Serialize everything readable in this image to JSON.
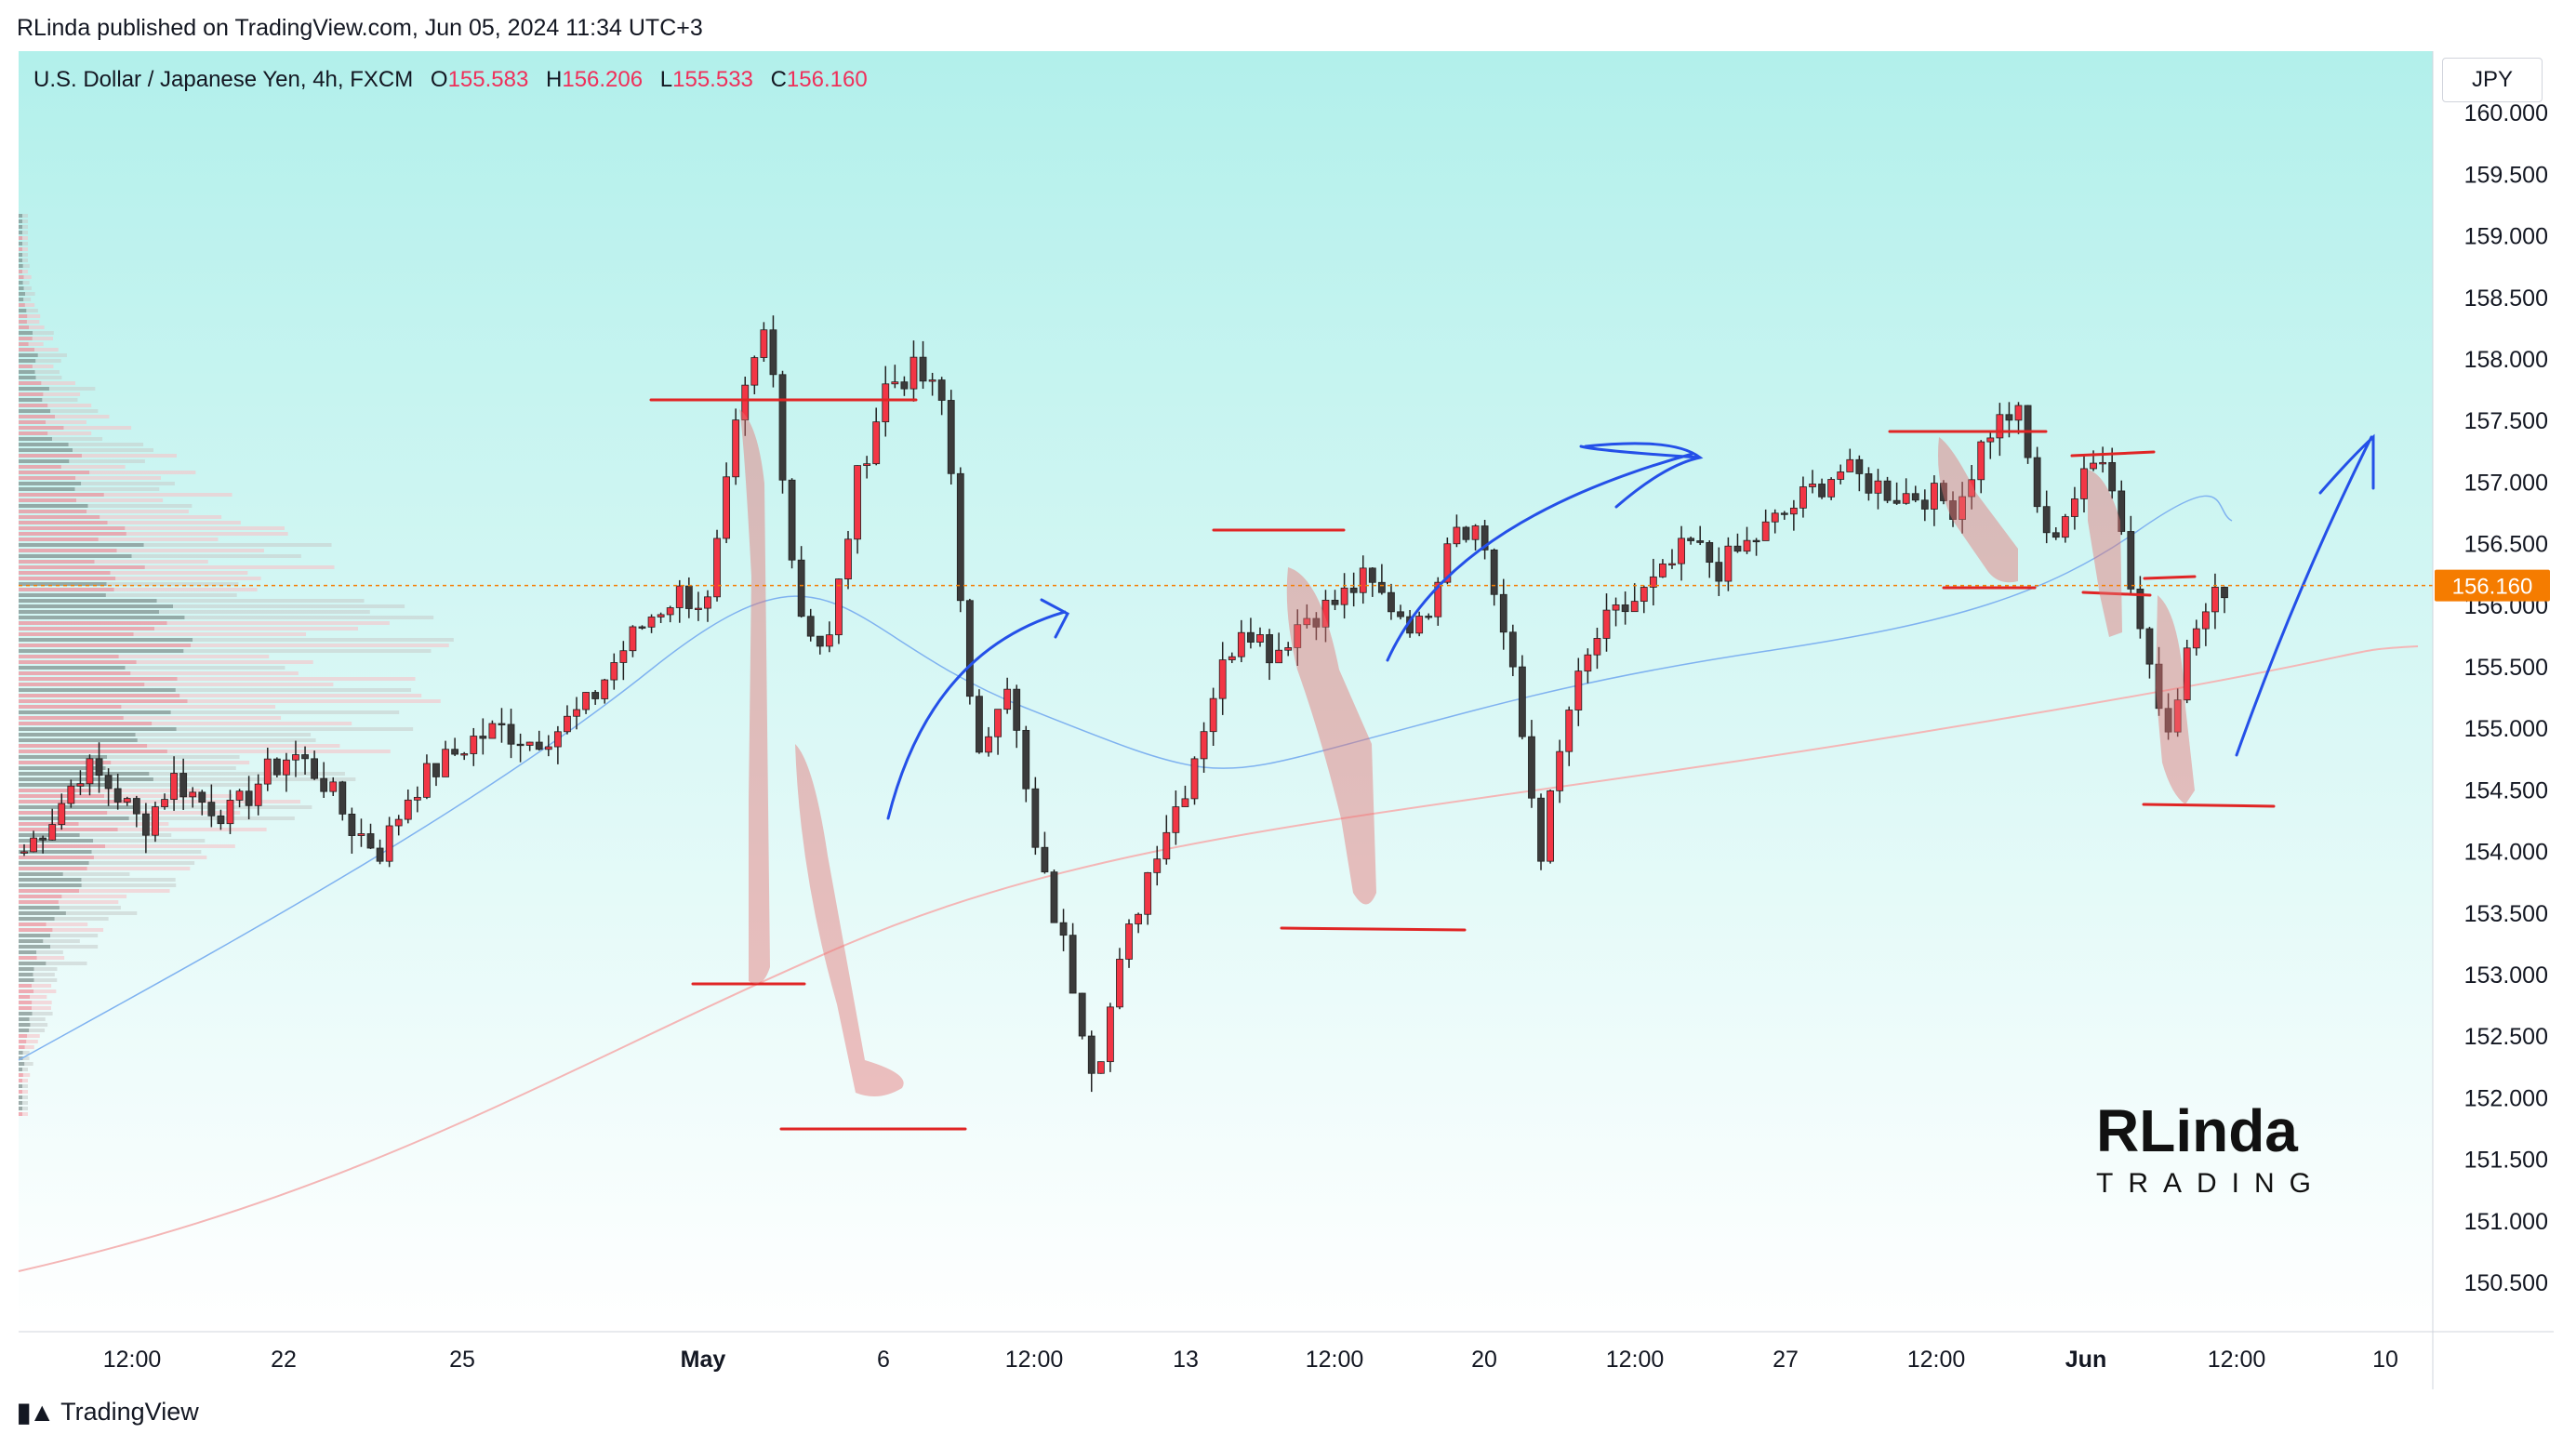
{
  "header": {
    "credit": "RLinda published on TradingView.com, Jun 05, 2024 11:34 UTC+3"
  },
  "footer": {
    "brand": "TradingView"
  },
  "legend": {
    "symbol": "U.S. Dollar / Japanese Yen, 4h, FXCM",
    "open_key": "O",
    "open": "155.583",
    "high_key": "H",
    "high": "156.206",
    "low_key": "L",
    "low": "155.533",
    "close_key": "C",
    "close": "156.160"
  },
  "currency": "JPY",
  "watermark": {
    "top": "RLinda",
    "bottom": "TRADING"
  },
  "colors": {
    "bg_top": "#b2f0eb",
    "bg_bottom": "#ffffff",
    "up": "#f23645",
    "down": "#3b3b3b",
    "annotation_red": "#e02525",
    "annotation_blue": "#2450e8",
    "last_price_bg": "#f57c00",
    "ma_fast": "#7fb2f0",
    "ma_slow": "#f4b6b6"
  },
  "chart_data": {
    "type": "candlestick",
    "interval": "4h",
    "ylim": [
      150.1,
      160.5
    ],
    "y_ticks": [
      "150.500",
      "151.000",
      "151.500",
      "152.000",
      "152.500",
      "153.000",
      "153.500",
      "154.000",
      "154.500",
      "155.000",
      "155.500",
      "156.000",
      "156.500",
      "157.000",
      "157.500",
      "158.000",
      "158.500",
      "159.000",
      "159.500",
      "160.000"
    ],
    "x_ticks": [
      {
        "label": "12:00",
        "bold": false
      },
      {
        "label": "22",
        "bold": false
      },
      {
        "label": "25",
        "bold": false
      },
      {
        "label": "May",
        "bold": true
      },
      {
        "label": "6",
        "bold": false
      },
      {
        "label": "12:00",
        "bold": false
      },
      {
        "label": "13",
        "bold": false
      },
      {
        "label": "12:00",
        "bold": false
      },
      {
        "label": "20",
        "bold": false
      },
      {
        "label": "12:00",
        "bold": false
      },
      {
        "label": "27",
        "bold": false
      },
      {
        "label": "12:00",
        "bold": false
      },
      {
        "label": "Jun",
        "bold": true
      },
      {
        "label": "12:00",
        "bold": false
      },
      {
        "label": "10",
        "bold": false
      }
    ],
    "last_price": "156.160",
    "close_path": [
      154.0,
      154.3,
      154.7,
      154.5,
      154.2,
      154.6,
      154.4,
      154.3,
      154.6,
      154.8,
      154.6,
      154.2,
      154.0,
      154.5,
      154.7,
      154.9,
      155.0,
      154.9,
      155.0,
      155.2,
      155.6,
      155.9,
      156.1,
      156.0,
      157.5,
      158.3,
      156.0,
      155.6,
      157.0,
      157.8,
      157.9,
      157.6,
      154.6,
      155.5,
      154.0,
      153.2,
      152.2,
      153.2,
      154.0,
      154.5,
      155.3,
      155.9,
      155.6,
      155.9,
      156.0,
      156.2,
      156.0,
      155.8,
      156.7,
      156.6,
      155.5,
      154.0,
      155.2,
      155.8,
      156.0,
      156.2,
      156.5,
      156.3,
      156.5,
      156.7,
      156.9,
      157.1,
      157.0,
      156.9,
      156.9,
      156.8,
      157.4,
      157.6,
      156.5,
      156.9,
      157.3,
      156.0,
      155.0,
      155.8,
      156.16
    ],
    "series": [
      {
        "name": "",
        "values": []
      }
    ]
  }
}
